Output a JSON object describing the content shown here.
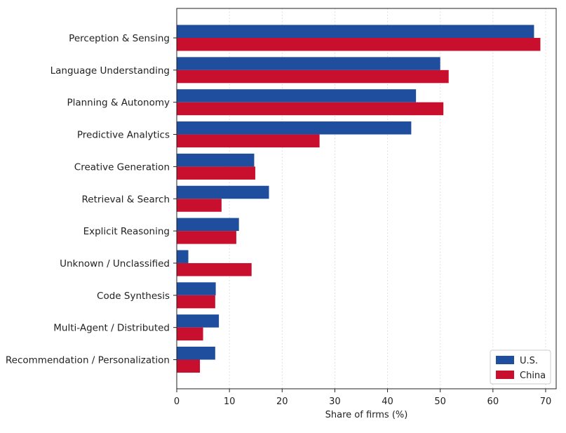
{
  "chart_data": {
    "type": "bar",
    "orientation": "horizontal",
    "title": "",
    "xlabel": "Share of firms (%)",
    "ylabel": "",
    "xlim": [
      0,
      72
    ],
    "xticks": [
      0,
      10,
      20,
      30,
      40,
      50,
      60,
      70
    ],
    "grid": "x-dotted",
    "legend_position": "bottom-right",
    "categories": [
      "Perception & Sensing",
      "Language Understanding",
      "Planning & Autonomy",
      "Predictive Analytics",
      "Creative Generation",
      "Retrieval & Search",
      "Explicit Reasoning",
      "Unknown / Unclassified",
      "Code Synthesis",
      "Multi-Agent / Distributed",
      "Recommendation / Personalization"
    ],
    "series": [
      {
        "name": "U.S.",
        "color": "#1f4e9f",
        "values": [
          67.8,
          50.0,
          45.4,
          44.5,
          14.7,
          17.5,
          11.8,
          2.2,
          7.4,
          8.0,
          7.3
        ]
      },
      {
        "name": "China",
        "color": "#c8102e",
        "values": [
          69.0,
          51.6,
          50.6,
          27.1,
          14.9,
          8.5,
          11.3,
          14.2,
          7.3,
          5.0,
          4.4
        ]
      }
    ]
  }
}
